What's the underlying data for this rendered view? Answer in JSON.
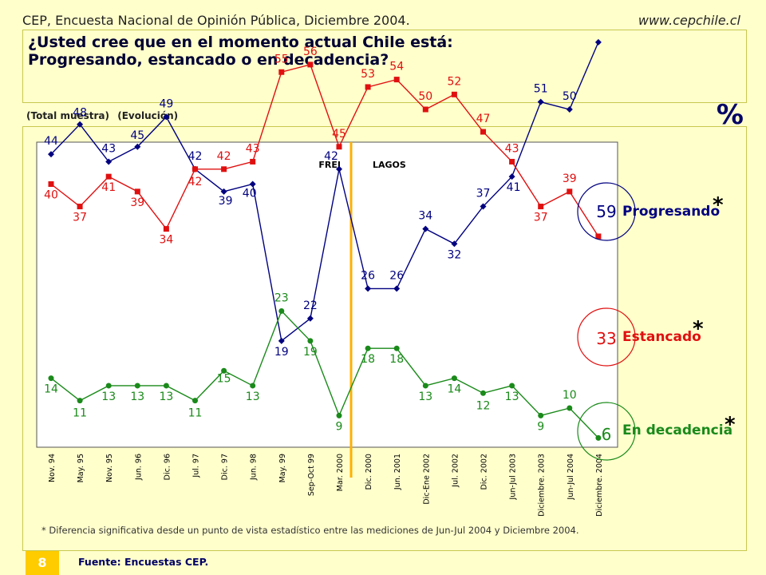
{
  "header": {
    "left_text": "CEP, Encuesta Nacional de Opinión Pública, Diciembre 2004.",
    "right_text": "www.cepchile.cl"
  },
  "title": "¿Usted cree que en el momento actual Chile está:\nProgresando,  estancado o en decadencia?",
  "subtitle": [
    "(Total muestra)",
    "(Evolución)"
  ],
  "unit_symbol": "%",
  "footnote": "* Diferencia significativa desde un punto de vista estadístico entre las mediciones de Jun-Jul 2004 y Diciembre 2004.",
  "source": "Fuente: Encuestas CEP.",
  "page_number": "8",
  "colors": {
    "progresando": "#000080",
    "estancado": "#e01010",
    "decadencia": "#1a8a1a",
    "divider": "#ffb000"
  },
  "chart_data": {
    "type": "line",
    "categories": [
      "Nov. 94",
      "May. 95",
      "Nov. 95",
      "Jun. 96",
      "Dic. 96",
      "Jul. 97",
      "Dic. 97",
      "Jun. 98",
      "May. 99",
      "Sep-Oct 99",
      "Mar. 2000",
      "Dic. 2000",
      "Jun. 2001",
      "Dic-Ene 2002",
      "Jul. 2002",
      "Dic. 2002",
      "Jun-Jul 2003",
      "Diciembre. 2003",
      "Jun-Jul 2004",
      "Diciembre. 2004"
    ],
    "series": [
      {
        "name": "Progresando",
        "key": "progresando",
        "marker": "diamond",
        "values": [
          44,
          48,
          43,
          45,
          49,
          42,
          39,
          40,
          19,
          22,
          42,
          26,
          26,
          34,
          32,
          37,
          41,
          51,
          50,
          59
        ]
      },
      {
        "name": "Estancado",
        "key": "estancado",
        "marker": "square",
        "values": [
          40,
          37,
          41,
          39,
          34,
          42,
          42,
          43,
          55,
          56,
          45,
          53,
          54,
          50,
          52,
          47,
          43,
          37,
          39,
          33
        ]
      },
      {
        "name": "En decadencia",
        "key": "decadencia",
        "marker": "circle",
        "values": [
          14,
          11,
          13,
          13,
          13,
          11,
          15,
          13,
          23,
          19,
          9,
          18,
          18,
          13,
          14,
          12,
          13,
          9,
          10,
          6
        ]
      }
    ],
    "significance_marker": "*",
    "periods": [
      {
        "label": "FREI"
      },
      {
        "label": "LAGOS"
      }
    ],
    "ylim": [
      0,
      65
    ],
    "grid": false
  }
}
